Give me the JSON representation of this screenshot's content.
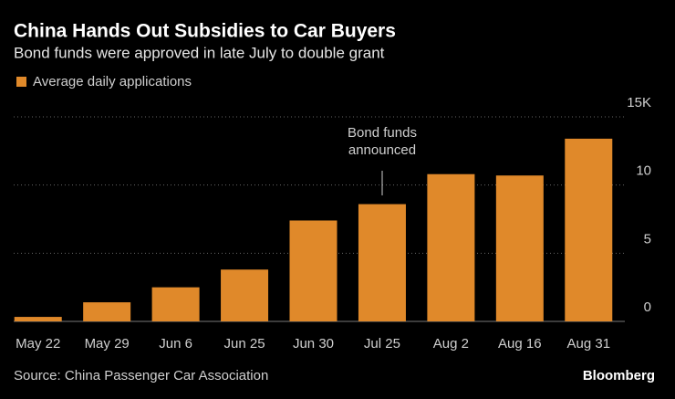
{
  "chart_data": {
    "type": "bar",
    "title": "China Hands Out Subsidies to Car Buyers",
    "subtitle": "Bond funds were approved in late July to double grant",
    "categories": [
      "May 22",
      "May 29",
      "Jun 6",
      "Jun 25",
      "Jun 30",
      "Jul 25",
      "Aug 2",
      "Aug 16",
      "Aug 31"
    ],
    "series": [
      {
        "name": "Average daily applications",
        "color": "#e0892a",
        "values": [
          0.33,
          1.4,
          2.5,
          3.8,
          7.4,
          8.6,
          10.8,
          10.7,
          13.4
        ]
      }
    ],
    "ylim": [
      0,
      15
    ],
    "yticks": [
      0,
      5,
      10,
      {
        "value": 15,
        "label": "15K"
      }
    ],
    "grid": true,
    "annotation": [
      "Bond funds",
      "announced"
    ],
    "source": "Source: China Passenger Car Association",
    "brand": "Bloomberg"
  }
}
